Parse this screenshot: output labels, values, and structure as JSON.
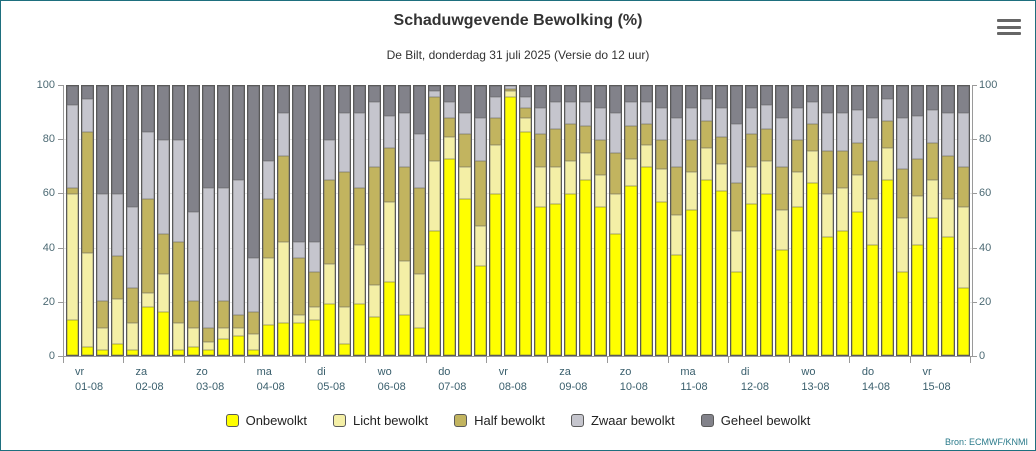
{
  "header": {
    "title": "Schaduwgevende Bewolking (%)",
    "subtitle": "De Bilt, donderdag 31 juli 2025 (Versie do 12 uur)"
  },
  "source_label": "Bron: ECMWF/KNMI",
  "colors": {
    "border": "#1e6f7e",
    "bar_outline": "#5a5a5a",
    "axis": "#9a9a9a"
  },
  "chart_data": {
    "type": "bar",
    "stacked": true,
    "title": "Schaduwgevende Bewolking (%)",
    "subtitle": "De Bilt, donderdag 31 juli 2025 (Versie do 12 uur)",
    "ylim": [
      0,
      100
    ],
    "yticks": [
      0,
      20,
      40,
      60,
      80,
      100
    ],
    "grid": true,
    "legend_position": "bottom",
    "bars_per_day": 4,
    "days": [
      {
        "weekday": "vr",
        "date": "01-08"
      },
      {
        "weekday": "za",
        "date": "02-08"
      },
      {
        "weekday": "zo",
        "date": "03-08"
      },
      {
        "weekday": "ma",
        "date": "04-08"
      },
      {
        "weekday": "di",
        "date": "05-08"
      },
      {
        "weekday": "wo",
        "date": "06-08"
      },
      {
        "weekday": "do",
        "date": "07-08"
      },
      {
        "weekday": "vr",
        "date": "08-08"
      },
      {
        "weekday": "za",
        "date": "09-08"
      },
      {
        "weekday": "zo",
        "date": "10-08"
      },
      {
        "weekday": "ma",
        "date": "11-08"
      },
      {
        "weekday": "di",
        "date": "12-08"
      },
      {
        "weekday": "wo",
        "date": "13-08"
      },
      {
        "weekday": "do",
        "date": "14-08"
      },
      {
        "weekday": "vr",
        "date": "15-08"
      }
    ],
    "series": [
      {
        "name": "Onbewolkt",
        "color": "#ffff00",
        "values": [
          13,
          3,
          2,
          4,
          2,
          18,
          16,
          2,
          3,
          2,
          6,
          7,
          2,
          11,
          12,
          12,
          13,
          19,
          4,
          19,
          14,
          27,
          15,
          10,
          46,
          73,
          58,
          33,
          60,
          96,
          83,
          55,
          56,
          60,
          65,
          55,
          45,
          63,
          70,
          57,
          37,
          54,
          65,
          61,
          31,
          56,
          60,
          39,
          55,
          64,
          44,
          46,
          53,
          41,
          65,
          31,
          41,
          51,
          44,
          25
        ]
      },
      {
        "name": "Licht bewolkt",
        "color": "#f4efa6",
        "values": [
          47,
          35,
          8,
          17,
          10,
          5,
          14,
          10,
          7,
          3,
          4,
          3,
          6,
          25,
          30,
          3,
          5,
          15,
          14,
          22,
          12,
          30,
          20,
          20,
          26,
          8,
          12,
          15,
          18,
          2,
          5,
          15,
          14,
          12,
          10,
          12,
          15,
          10,
          8,
          12,
          15,
          14,
          12,
          10,
          15,
          14,
          12,
          15,
          13,
          12,
          16,
          16,
          14,
          17,
          12,
          20,
          18,
          14,
          14,
          30
        ]
      },
      {
        "name": "Half bewolkt",
        "color": "#c2b45f",
        "values": [
          2,
          45,
          10,
          16,
          13,
          35,
          15,
          30,
          10,
          5,
          10,
          5,
          8,
          22,
          32,
          21,
          13,
          31,
          50,
          21,
          44,
          20,
          35,
          32,
          24,
          7,
          12,
          24,
          10,
          1,
          4,
          12,
          14,
          14,
          10,
          13,
          15,
          12,
          8,
          11,
          18,
          12,
          10,
          10,
          18,
          12,
          12,
          16,
          12,
          10,
          16,
          14,
          12,
          14,
          10,
          18,
          14,
          14,
          16,
          15
        ]
      },
      {
        "name": "Zwaar bewolkt",
        "color": "#c5c5cd",
        "values": [
          31,
          12,
          40,
          23,
          30,
          25,
          35,
          38,
          33,
          52,
          42,
          50,
          20,
          14,
          16,
          6,
          11,
          15,
          22,
          28,
          24,
          12,
          20,
          20,
          2,
          6,
          8,
          16,
          8,
          1,
          4,
          10,
          10,
          8,
          9,
          12,
          15,
          9,
          8,
          12,
          18,
          12,
          8,
          11,
          22,
          10,
          9,
          18,
          12,
          8,
          14,
          14,
          12,
          16,
          8,
          19,
          16,
          12,
          16,
          20
        ]
      },
      {
        "name": "Geheel bewolkt",
        "color": "#82828a",
        "values": [
          7,
          5,
          40,
          40,
          45,
          17,
          20,
          20,
          47,
          38,
          38,
          35,
          64,
          28,
          10,
          58,
          58,
          20,
          10,
          10,
          6,
          11,
          10,
          18,
          2,
          6,
          10,
          12,
          4,
          0,
          4,
          8,
          6,
          6,
          6,
          8,
          10,
          6,
          6,
          8,
          12,
          8,
          5,
          8,
          14,
          8,
          7,
          12,
          8,
          6,
          10,
          10,
          9,
          12,
          5,
          12,
          11,
          9,
          10,
          10
        ]
      }
    ]
  }
}
